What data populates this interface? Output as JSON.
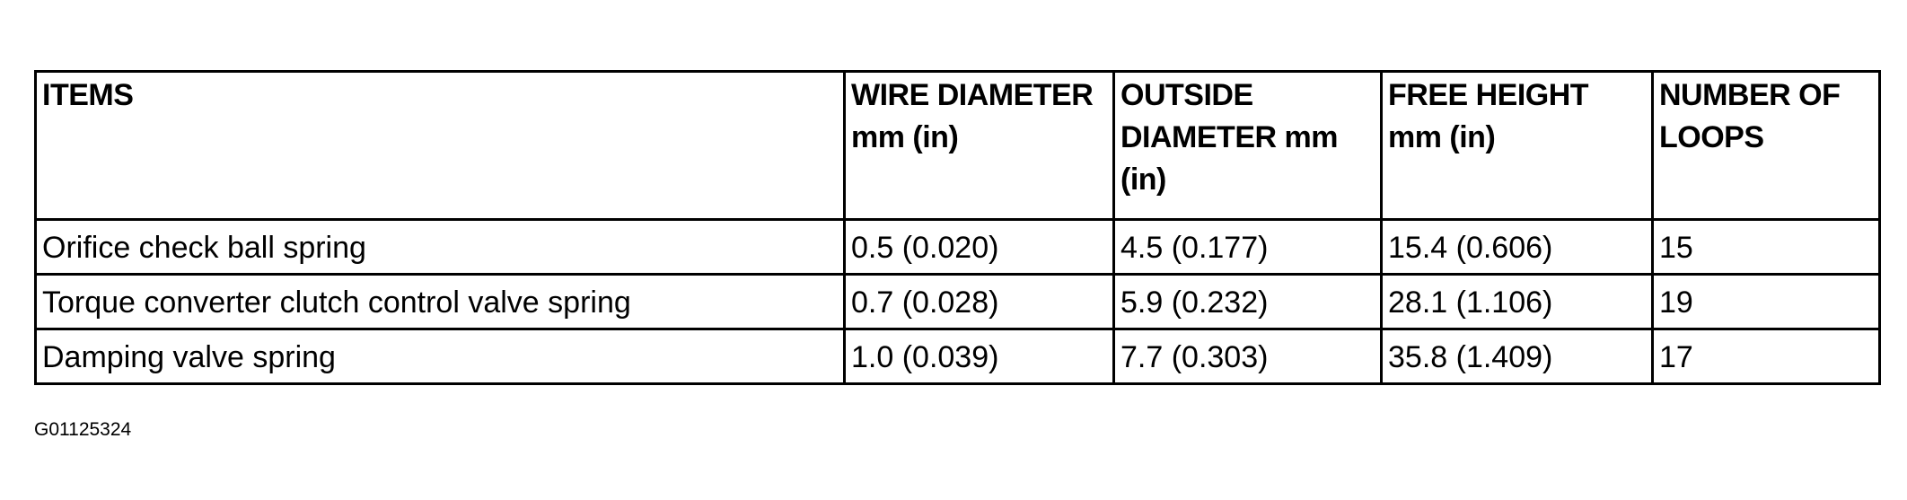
{
  "table": {
    "headers": [
      "ITEMS",
      "WIRE DIAMETER mm (in)",
      "OUTSIDE DIAMETER mm (in)",
      "FREE HEIGHT  mm (in)",
      "NUMBER OF LOOPS"
    ],
    "rows": [
      [
        "Orifice check ball spring",
        "0.5 (0.020)",
        "4.5 (0.177)",
        "15.4 (0.606)",
        "15"
      ],
      [
        "Torque converter clutch control valve spring",
        "0.7 (0.028)",
        "5.9 (0.232)",
        "28.1 (1.106)",
        "19"
      ],
      [
        "Damping valve spring",
        "1.0 (0.039)",
        "7.7 (0.303)",
        "35.8 (1.409)",
        "17"
      ]
    ]
  },
  "figure_id": "G01125324"
}
